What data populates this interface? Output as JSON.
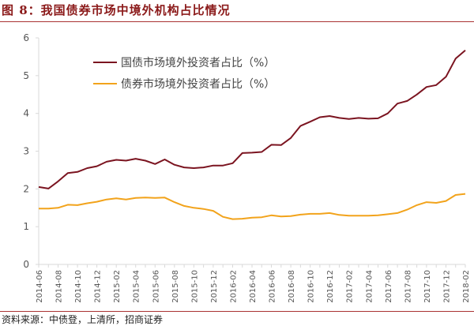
{
  "title": "图 8：我国债券市场中境外机构占比情况",
  "source": "资料来源：中债登，上清所，招商证券",
  "chart_data": {
    "type": "line",
    "title": "我国债券市场中境外机构占比情况",
    "xlabel": "",
    "ylabel": "",
    "ylim": [
      0,
      6
    ],
    "yticks": [
      "0",
      "1",
      "2",
      "3",
      "4",
      "5",
      "6"
    ],
    "grid": false,
    "legend_position": "top-center",
    "x": [
      "2014-06",
      "2014-07",
      "2014-08",
      "2014-09",
      "2014-10",
      "2014-11",
      "2014-12",
      "2015-01",
      "2015-02",
      "2015-03",
      "2015-04",
      "2015-05",
      "2015-06",
      "2015-07",
      "2015-08",
      "2015-09",
      "2015-10",
      "2015-11",
      "2015-12",
      "2016-01",
      "2016-02",
      "2016-03",
      "2016-04",
      "2016-05",
      "2016-06",
      "2016-07",
      "2016-08",
      "2016-09",
      "2016-10",
      "2016-11",
      "2016-12",
      "2017-01",
      "2017-02",
      "2017-03",
      "2017-04",
      "2017-05",
      "2017-06",
      "2017-07",
      "2017-08",
      "2017-09",
      "2017-10",
      "2017-11",
      "2017-12",
      "2018-01",
      "2018-02"
    ],
    "xtick_labels": [
      "2014-06",
      "2014-08",
      "2014-10",
      "2014-12",
      "2015-02",
      "2015-04",
      "2015-06",
      "2015-08",
      "2015-10",
      "2015-12",
      "2016-02",
      "2016-04",
      "2016-06",
      "2016-08",
      "2016-10",
      "2016-12",
      "2017-02",
      "2017-04",
      "2017-06",
      "2017-08",
      "2017-10",
      "2017-12",
      "2018-02"
    ],
    "series": [
      {
        "name": "国债市场境外投资者占比（%）",
        "color": "#7b1420",
        "values": [
          2.05,
          2.01,
          2.2,
          2.42,
          2.45,
          2.55,
          2.6,
          2.72,
          2.77,
          2.75,
          2.8,
          2.75,
          2.66,
          2.78,
          2.64,
          2.57,
          2.55,
          2.57,
          2.62,
          2.62,
          2.68,
          2.95,
          2.96,
          2.98,
          3.17,
          3.16,
          3.35,
          3.67,
          3.78,
          3.9,
          3.93,
          3.88,
          3.85,
          3.88,
          3.86,
          3.87,
          4.0,
          4.26,
          4.33,
          4.5,
          4.7,
          4.75,
          4.97,
          5.45,
          5.67
        ]
      },
      {
        "name": "债券市场境外投资者占比（%）",
        "color": "#f2a31b",
        "values": [
          1.48,
          1.48,
          1.5,
          1.58,
          1.57,
          1.62,
          1.66,
          1.72,
          1.75,
          1.72,
          1.76,
          1.77,
          1.76,
          1.77,
          1.65,
          1.55,
          1.5,
          1.47,
          1.42,
          1.26,
          1.2,
          1.21,
          1.24,
          1.25,
          1.3,
          1.27,
          1.28,
          1.32,
          1.34,
          1.34,
          1.36,
          1.31,
          1.29,
          1.29,
          1.29,
          1.3,
          1.33,
          1.36,
          1.45,
          1.57,
          1.65,
          1.63,
          1.68,
          1.84,
          1.87
        ]
      }
    ]
  }
}
